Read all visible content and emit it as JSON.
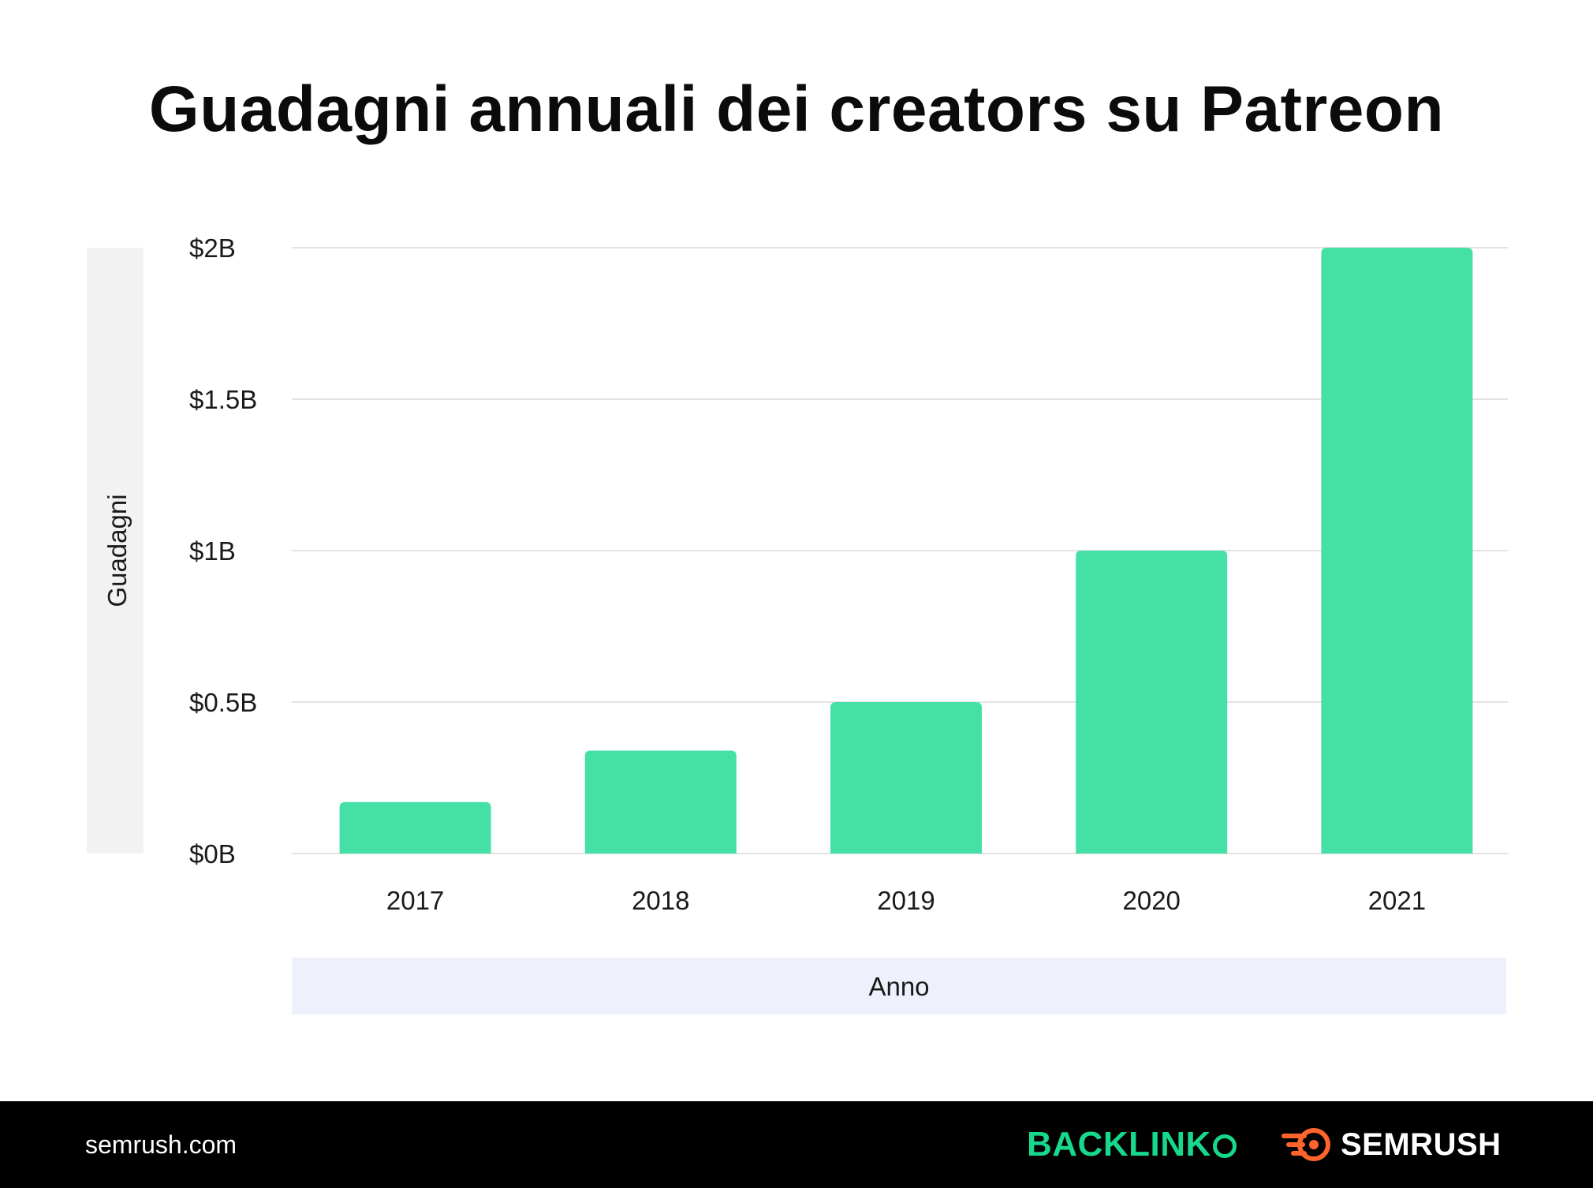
{
  "chart_data": {
    "type": "bar",
    "title": "Guadagni annuali dei creators su Patreon",
    "xlabel": "Anno",
    "ylabel": "Guadagni",
    "categories": [
      "2017",
      "2018",
      "2019",
      "2020",
      "2021"
    ],
    "values": [
      0.17,
      0.34,
      0.5,
      1.0,
      2.0
    ],
    "value_unit": "billion USD",
    "ylim": [
      0,
      2
    ],
    "yticks": [
      0,
      0.5,
      1,
      1.5,
      2
    ],
    "ytick_labels": [
      "$0B",
      "$0.5B",
      "$1B",
      "$1.5B",
      "$2B"
    ],
    "grid": true,
    "bar_color": "#45E0A6"
  },
  "footer": {
    "site": "semrush.com",
    "brand_backlinko": "BACKLINK",
    "brand_semrush": "SEMRUSH"
  },
  "colors": {
    "footer_bg": "#000000",
    "backlinko_green": "#16D98B",
    "semrush_orange": "#FF642D",
    "ylabel_box": "#F2F2F2",
    "xlabel_box": "#EEF1FC"
  }
}
